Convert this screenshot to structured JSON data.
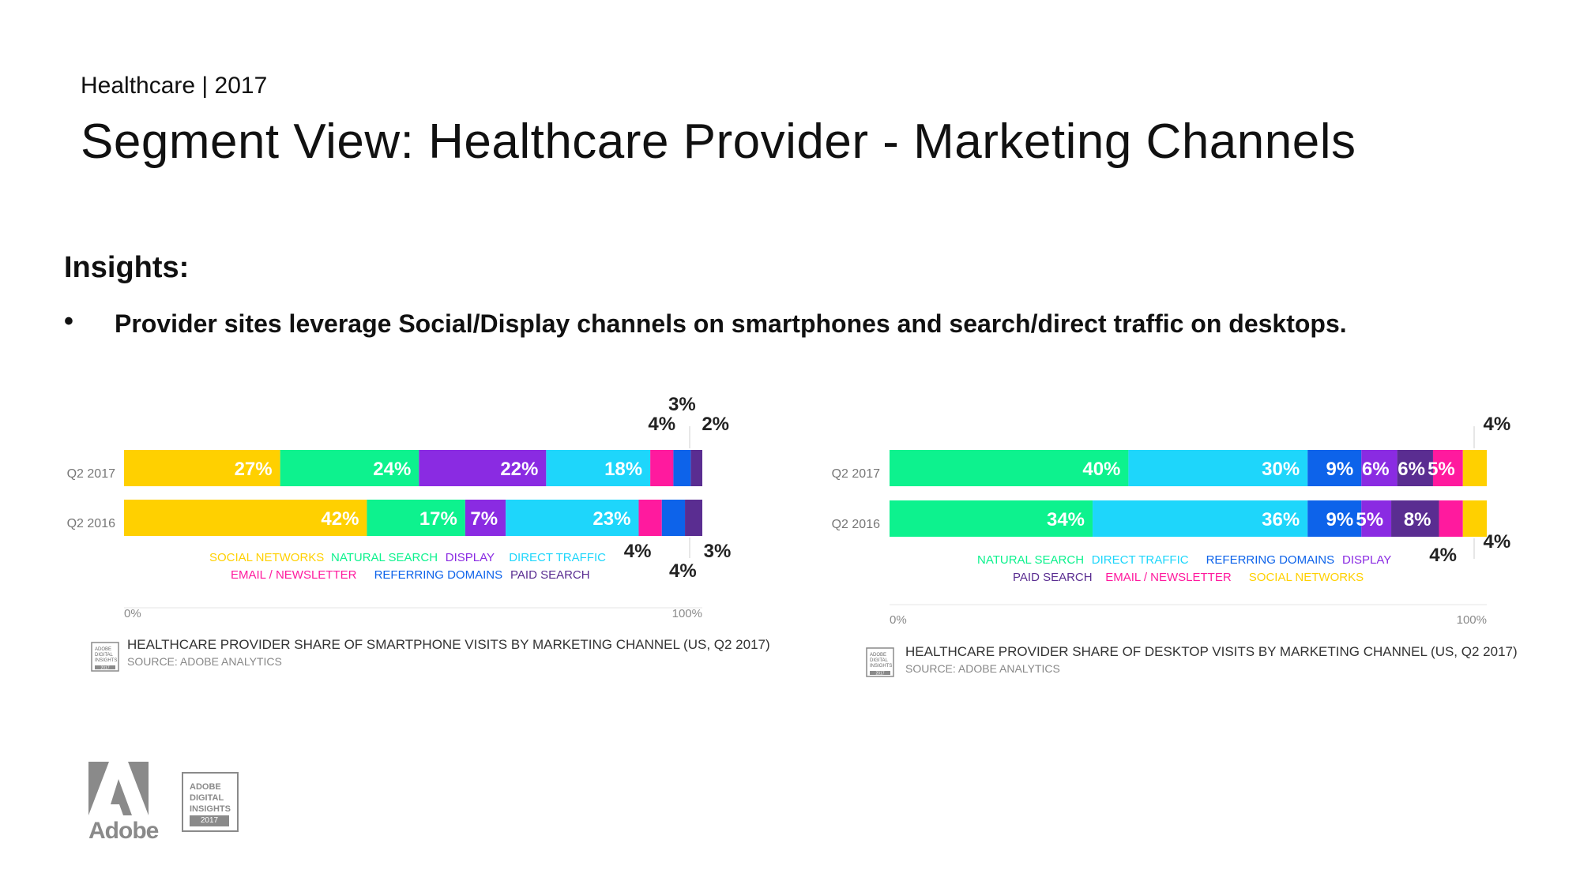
{
  "header": {
    "supertitle": "Healthcare | 2017",
    "title": "Segment View: Healthcare Provider - Marketing Channels"
  },
  "insights": {
    "heading": "Insights:",
    "bullet": "•",
    "items": [
      "Provider sites leverage Social/Display channels on smartphones and search/direct traffic on desktops."
    ]
  },
  "colors": {
    "social": "#ffd000",
    "natural": "#0df28e",
    "display": "#8a2be2",
    "direct": "#1ed6fb",
    "email": "#ff1a9e",
    "referring": "#0d63ea",
    "paid": "#5a2d91"
  },
  "chart_data": [
    {
      "type": "bar",
      "orientation": "horizontal-stacked-100",
      "title": "HEALTHCARE PROVIDER SHARE OF SMARTPHONE VISITS BY MARKETING CHANNEL (US, Q2 2017)",
      "source": "SOURCE: ADOBE ANALYTICS",
      "categories": [
        "Q2 2017",
        "Q2 2016"
      ],
      "series": [
        {
          "name": "SOCIAL NETWORKS",
          "key": "social",
          "values": [
            27,
            42
          ]
        },
        {
          "name": "NATURAL SEARCH",
          "key": "natural",
          "values": [
            24,
            17
          ]
        },
        {
          "name": "DISPLAY",
          "key": "display",
          "values": [
            22,
            7
          ]
        },
        {
          "name": "DIRECT TRAFFIC",
          "key": "direct",
          "values": [
            18,
            23
          ]
        },
        {
          "name": "EMAIL / NEWSLETTER",
          "key": "email",
          "values": [
            4,
            4
          ]
        },
        {
          "name": "REFERRING DOMAINS",
          "key": "referring",
          "values": [
            3,
            4
          ]
        },
        {
          "name": "PAID SEARCH",
          "key": "paid",
          "values": [
            2,
            3
          ]
        }
      ],
      "legend_rows": [
        [
          "SOCIAL NETWORKS",
          "NATURAL SEARCH",
          "DISPLAY",
          "DIRECT TRAFFIC"
        ],
        [
          "EMAIL / NEWSLETTER",
          "REFERRING DOMAINS",
          "PAID SEARCH"
        ]
      ],
      "xlim": [
        0,
        100
      ],
      "xticks": [
        "0%",
        "100%"
      ]
    },
    {
      "type": "bar",
      "orientation": "horizontal-stacked-100",
      "title": "HEALTHCARE PROVIDER SHARE OF DESKTOP VISITS BY MARKETING CHANNEL (US, Q2 2017)",
      "source": "SOURCE: ADOBE ANALYTICS",
      "categories": [
        "Q2 2017",
        "Q2 2016"
      ],
      "series": [
        {
          "name": "NATURAL SEARCH",
          "key": "natural",
          "values": [
            40,
            34
          ]
        },
        {
          "name": "DIRECT TRAFFIC",
          "key": "direct",
          "values": [
            30,
            36
          ]
        },
        {
          "name": "REFERRING DOMAINS",
          "key": "referring",
          "values": [
            9,
            9
          ]
        },
        {
          "name": "DISPLAY",
          "key": "display",
          "values": [
            6,
            5
          ]
        },
        {
          "name": "PAID SEARCH",
          "key": "paid",
          "values": [
            6,
            8
          ]
        },
        {
          "name": "EMAIL / NEWSLETTER",
          "key": "email",
          "values": [
            5,
            4
          ]
        },
        {
          "name": "SOCIAL NETWORKS",
          "key": "social",
          "values": [
            4,
            4
          ]
        }
      ],
      "legend_rows": [
        [
          "NATURAL SEARCH",
          "DIRECT TRAFFIC",
          "REFERRING DOMAINS",
          "DISPLAY"
        ],
        [
          "PAID SEARCH",
          "EMAIL / NEWSLETTER",
          "SOCIAL NETWORKS"
        ]
      ],
      "xlim": [
        0,
        100
      ],
      "xticks": [
        "0%",
        "100%"
      ]
    }
  ],
  "badge": {
    "lines": [
      "ADOBE",
      "DIGITAL",
      "INSIGHTS"
    ],
    "year": "2017"
  },
  "logo": {
    "wordmark": "Adobe"
  }
}
